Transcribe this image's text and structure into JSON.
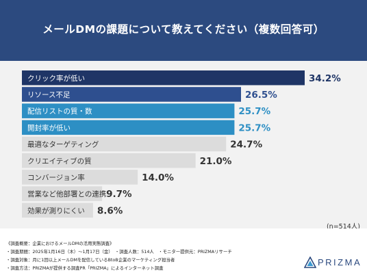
{
  "header": {
    "title": "メールDMの課題について教えてください（複数回答可）"
  },
  "chart_data": {
    "type": "bar",
    "orientation": "horizontal",
    "title": "メールDMの課題について教えてください（複数回答可）",
    "unit": "%",
    "categories": [
      "クリック率が低い",
      "リソース不足",
      "配信リストの質・数",
      "開封率が低い",
      "最適なターゲティング",
      "クリエイティブの質",
      "コンバージョン率",
      "営業など他部署との連携",
      "効果が測りにくい"
    ],
    "values": [
      34.2,
      26.5,
      25.7,
      25.7,
      24.7,
      21.0,
      14.0,
      9.7,
      8.6
    ],
    "value_labels": [
      "34.2%",
      "26.5%",
      "25.7%",
      "25.7%",
      "24.7%",
      "21.0%",
      "14.0%",
      "9.7%",
      "8.6%"
    ],
    "xlim": [
      0,
      34.2
    ],
    "colors": [
      "#1f3566",
      "#2e4f8f",
      "#2d8fc4",
      "#2d8fc4",
      "#dcdcdc",
      "#dcdcdc",
      "#dcdcdc",
      "#dcdcdc",
      "#dcdcdc"
    ],
    "label_colors": [
      "#ffffff",
      "#ffffff",
      "#ffffff",
      "#ffffff",
      "#333333",
      "#333333",
      "#333333",
      "#333333",
      "#333333"
    ],
    "value_colors": [
      "#1f3566",
      "#2e4f8f",
      "#2d8fc4",
      "#2d8fc4",
      "#333333",
      "#333333",
      "#333333",
      "#333333",
      "#333333"
    ],
    "grid": false,
    "legend": "none",
    "note": "(n=514人)"
  },
  "footer": {
    "lines": [
      "《調査概要：企業におけるメールDMの活用実態調査》",
      "・調査期間：2025年1月16日（木）〜1月17日（金）　・調査人数：514人　・モニター提供元：PRIZMAリサーチ",
      "・調査対象：月に1回以上メールDMを配信しているBtoB企業のマーケティング担当者",
      "・調査方法：PRIZMAが提供する調査PR「PRIZMA」によるインターネット調査"
    ]
  },
  "logo": {
    "text": "PRIZMA",
    "color": "#2c4a7f"
  }
}
